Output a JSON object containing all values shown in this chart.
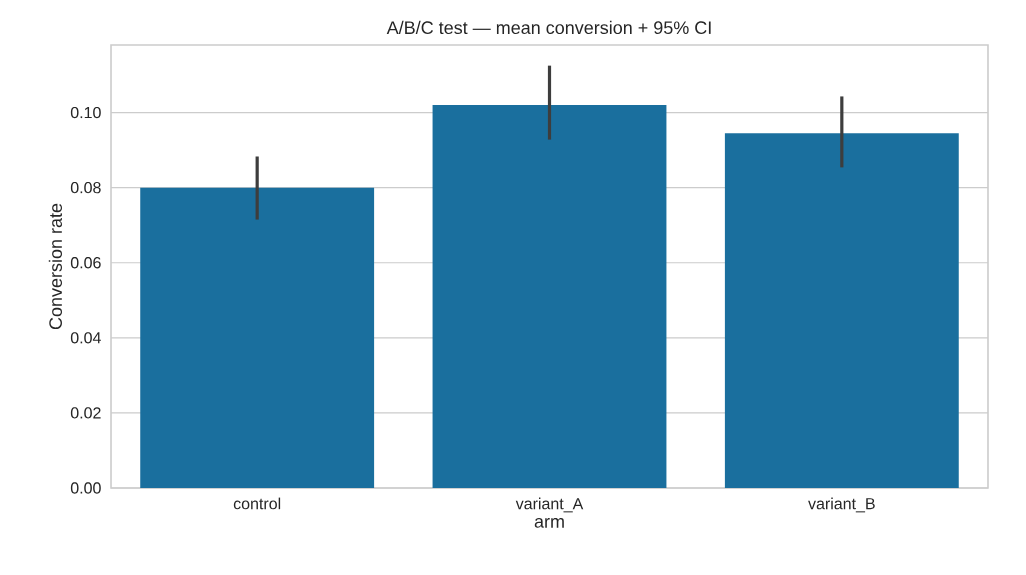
{
  "chart_data": {
    "type": "bar",
    "title": "A/B/C test — mean conversion + 95% CI",
    "xlabel": "arm",
    "ylabel": "Conversion rate",
    "categories": [
      "control",
      "variant_A",
      "variant_B"
    ],
    "values": [
      0.08,
      0.102,
      0.0945
    ],
    "errors": [
      [
        0.0715,
        0.0883
      ],
      [
        0.0928,
        0.1125
      ],
      [
        0.0854,
        0.1043
      ]
    ],
    "color": "#1a6f9e",
    "ylim": [
      0,
      0.118
    ],
    "yticks": [
      {
        "value": 0,
        "label": "0.00"
      },
      {
        "value": 0.02,
        "label": "0.02"
      },
      {
        "value": 0.04,
        "label": "0.04"
      },
      {
        "value": 0.06,
        "label": "0.06"
      },
      {
        "value": 0.08,
        "label": "0.08"
      },
      {
        "value": 0.1,
        "label": "0.10"
      }
    ],
    "grid": "y"
  }
}
